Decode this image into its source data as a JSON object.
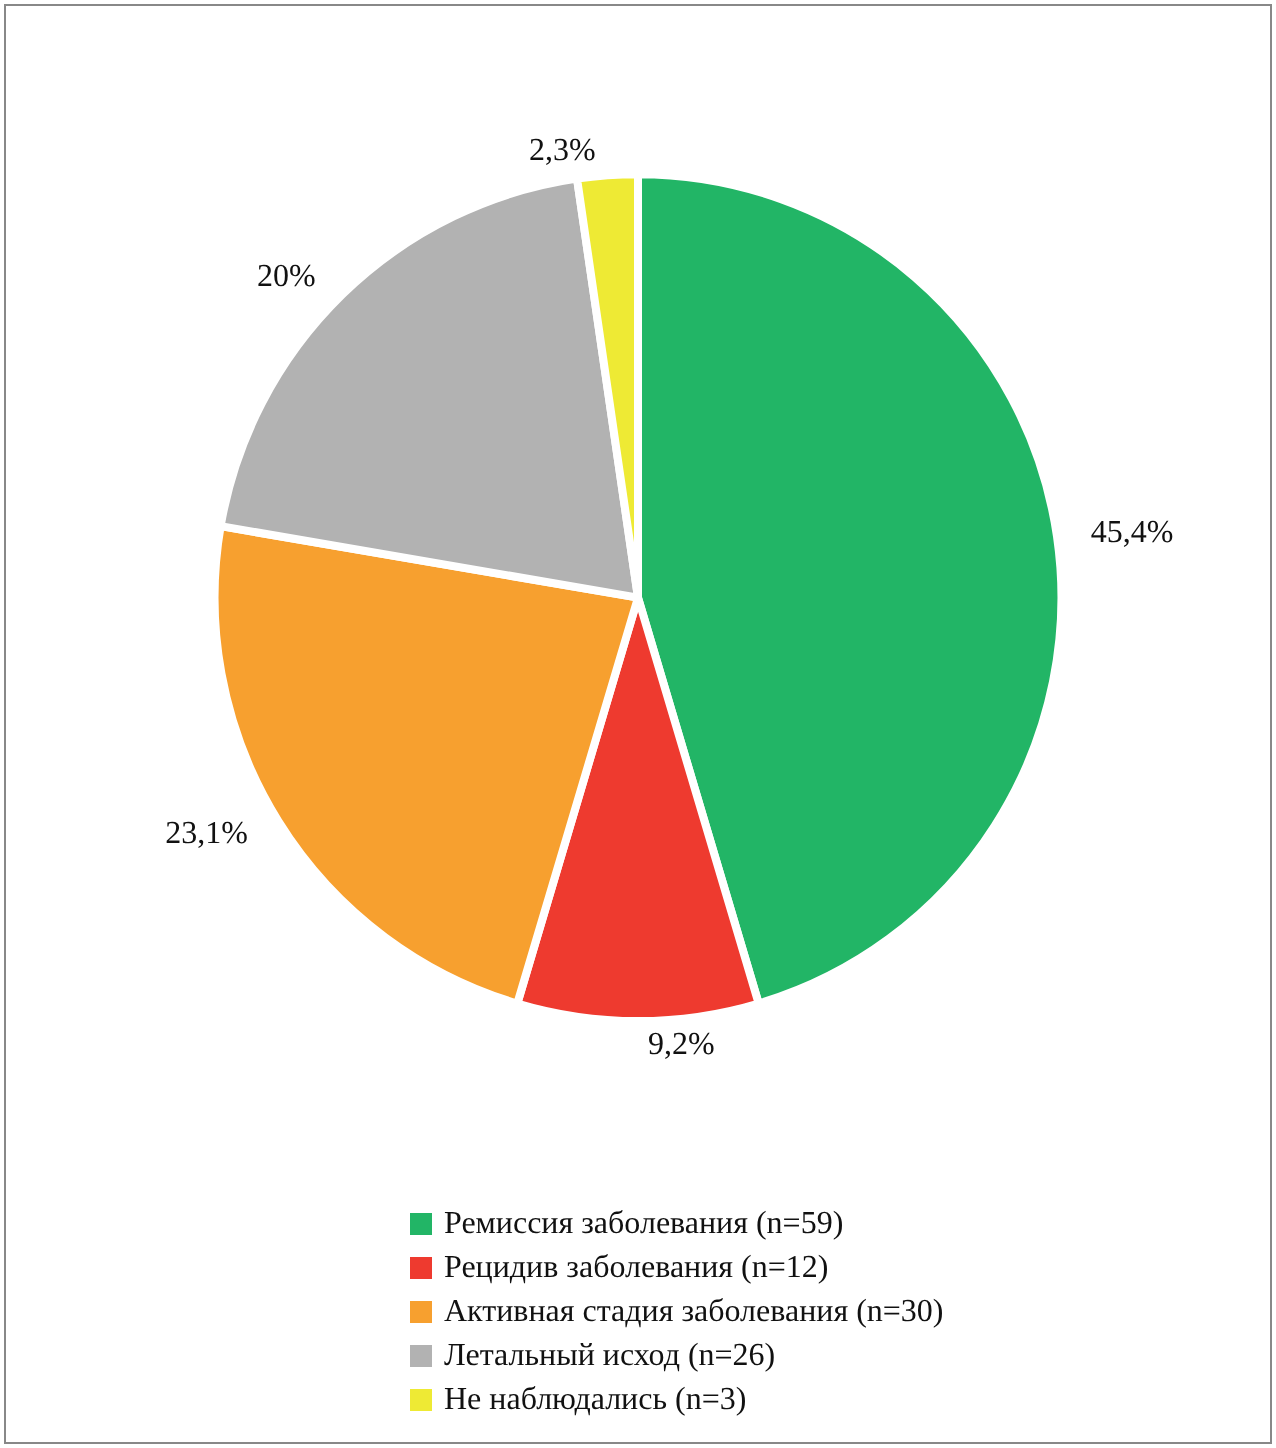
{
  "chart_data": {
    "type": "pie",
    "categories": [
      "Ремиссия заболевания (n=59)",
      "Рецидив заболевания (n=12)",
      "Активная стадия заболевания (n=30)",
      "Летальный исход (n=26)",
      "Не наблюдались (n=3)"
    ],
    "values": [
      45.4,
      9.2,
      23.1,
      20,
      2.3
    ],
    "colors": [
      "#22b566",
      "#ee3a2f",
      "#f7a02f",
      "#b2b2b2",
      "#eeea34"
    ],
    "value_labels": [
      "45,4%",
      "9,2%",
      "23,1%",
      "20%",
      "2,3%"
    ],
    "legend": "bottom"
  }
}
